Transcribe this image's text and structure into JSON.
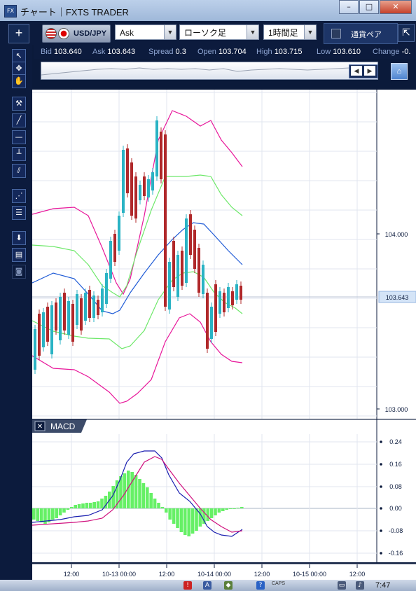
{
  "window": {
    "title": "チャート｜FXTS TRADER",
    "icon_label": "FX",
    "min_btn": "–",
    "max_btn": "□",
    "close_btn": "✕"
  },
  "toolbar": {
    "add_btn": "+",
    "symbol": "USD/JPY",
    "price_type": "Ask",
    "chart_type": "ローソク足",
    "timeframe": "1時間足",
    "pair_toggle_label": "通貨ペア",
    "corner_icon": "⇱"
  },
  "quote": {
    "bid_label": "Bid",
    "bid": "103.640",
    "ask_label": "Ask",
    "ask": "103.643",
    "spread_label": "Spread",
    "spread": "0.3",
    "open_label": "Open",
    "open": "103.704",
    "high_label": "High",
    "high": "103.715",
    "low_label": "Low",
    "low": "103.610",
    "change_label": "Change",
    "change": "-0."
  },
  "price_axis": {
    "labels": [
      "104.000",
      "103.000"
    ],
    "current": "103.643"
  },
  "macd_panel": {
    "title": "MACD",
    "close_btn": "✕",
    "axis_labels": [
      "0.24",
      "0.16",
      "0.08",
      "0.00",
      "-0.08",
      "-0.16"
    ]
  },
  "time_axis": {
    "labels": [
      "12:00",
      "10-13 00:00",
      "12:00",
      "10-14 00:00",
      "12:00",
      "10-15 00:00",
      "12:00"
    ]
  },
  "taskbar": {
    "clock": "7:47",
    "caps": "CAPS"
  },
  "colors": {
    "bollinger_outer": "#e8179a",
    "bollinger_inner": "#6ee86a",
    "moving_avg": "#1f5bd6",
    "bull": "#2ab3c4",
    "bear": "#b0282a",
    "macd_line": "#1a1fb0",
    "signal_line": "#d0117e",
    "histogram": "#66f066"
  }
}
